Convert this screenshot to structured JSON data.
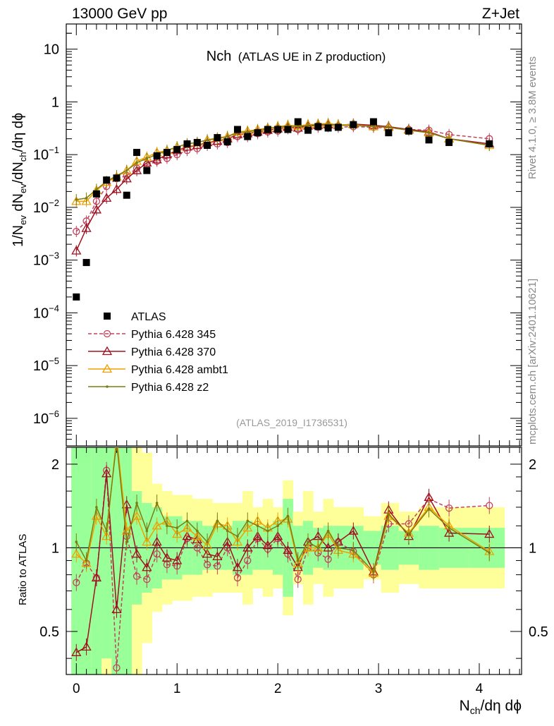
{
  "header": {
    "left": "13000 GeV pp",
    "right": "Z+Jet"
  },
  "side_labels": {
    "rivet": "Rivet 4.1.0, ≥ 3.8M events",
    "mcplots": "mcplots.cern.ch [arXiv:2401.10621]"
  },
  "chart_data": {
    "type": "line",
    "title_main": "Nch",
    "title_sub": "(ATLAS UE in Z production)",
    "analysis_id": "(ATLAS_2019_I1736531)",
    "xlabel": "N_ch/dη dϕ",
    "ylabel": "1/N_ev dN_ev/dN_ch/dη dϕ",
    "ratio_ylabel": "Ratio to ATLAS",
    "xlim": [
      -0.1,
      4.42
    ],
    "ylim": [
      3e-07,
      30
    ],
    "ratio_ylim": [
      0.35,
      2.3
    ],
    "yscale": "log",
    "x_ticks": [
      "0",
      "1",
      "2",
      "3",
      "4"
    ],
    "y_ticks": [
      {
        "v": 1e-06,
        "label": "10",
        "exp": "−6"
      },
      {
        "v": 1e-05,
        "label": "10",
        "exp": "−5"
      },
      {
        "v": 0.0001,
        "label": "10",
        "exp": "−4"
      },
      {
        "v": 0.001,
        "label": "10",
        "exp": "−3"
      },
      {
        "v": 0.01,
        "label": "10",
        "exp": "−2"
      },
      {
        "v": 0.1,
        "label": "10",
        "exp": "−1"
      },
      {
        "v": 1,
        "label": "1",
        "exp": ""
      },
      {
        "v": 10,
        "label": "10",
        "exp": ""
      }
    ],
    "ratio_ticks": [
      {
        "v": 0.5,
        "label": "0.5"
      },
      {
        "v": 1,
        "label": "1"
      },
      {
        "v": 2,
        "label": "2"
      }
    ],
    "data": {
      "name": "ATLAS",
      "x": [
        0.0,
        0.1,
        0.2,
        0.3,
        0.4,
        0.5,
        0.6,
        0.7,
        0.8,
        0.9,
        1.0,
        1.1,
        1.2,
        1.3,
        1.4,
        1.5,
        1.6,
        1.7,
        1.8,
        1.9,
        2.0,
        2.1,
        2.2,
        2.3,
        2.4,
        2.5,
        2.6,
        2.75,
        2.95,
        3.1,
        3.3,
        3.5,
        3.7,
        4.1
      ],
      "y": [
        0.0002,
        0.0009,
        0.018,
        0.033,
        0.036,
        0.017,
        0.11,
        0.05,
        0.095,
        0.11,
        0.125,
        0.16,
        0.17,
        0.15,
        0.21,
        0.175,
        0.3,
        0.22,
        0.26,
        0.3,
        0.3,
        0.3,
        0.42,
        0.29,
        0.34,
        0.32,
        0.33,
        0.37,
        0.42,
        0.26,
        0.28,
        0.19,
        0.17,
        0.16
      ]
    },
    "series": [
      {
        "name": "Pythia 6.428 345",
        "color": "#c2425c",
        "dashed": true,
        "marker": "circle",
        "x": [
          0.0,
          0.1,
          0.2,
          0.3,
          0.4,
          0.5,
          0.6,
          0.7,
          0.8,
          0.9,
          1.0,
          1.1,
          1.2,
          1.3,
          1.4,
          1.5,
          1.6,
          1.7,
          1.8,
          1.9,
          2.0,
          2.1,
          2.2,
          2.3,
          2.4,
          2.5,
          2.6,
          2.75,
          2.95,
          3.1,
          3.3,
          3.5,
          3.7,
          4.1
        ],
        "y": [
          0.0035,
          0.0055,
          0.013,
          0.025,
          0.035,
          0.04,
          0.055,
          0.065,
          0.075,
          0.085,
          0.1,
          0.12,
          0.13,
          0.15,
          0.16,
          0.17,
          0.22,
          0.22,
          0.25,
          0.27,
          0.28,
          0.31,
          0.3,
          0.32,
          0.33,
          0.34,
          0.33,
          0.34,
          0.33,
          0.32,
          0.3,
          0.29,
          0.24,
          0.2
        ],
        "ratio": [
          0.75,
          0.88,
          0.78,
          1.9,
          0.37,
          1.1,
          0.79,
          0.77,
          0.95,
          0.87,
          0.86,
          1.08,
          1.0,
          0.87,
          0.86,
          1.0,
          0.78,
          0.9,
          1.08,
          0.99,
          1.08,
          0.95,
          0.77,
          1.0,
          0.96,
          0.91,
          1.05,
          0.97,
          0.8,
          1.22,
          1.22,
          1.5,
          1.39,
          1.42
        ]
      },
      {
        "name": "Pythia 6.428 370",
        "color": "#a01020",
        "dashed": false,
        "marker": "triangle",
        "x": [
          0.0,
          0.1,
          0.2,
          0.3,
          0.4,
          0.5,
          0.6,
          0.7,
          0.8,
          0.9,
          1.0,
          1.1,
          1.2,
          1.3,
          1.4,
          1.5,
          1.6,
          1.7,
          1.8,
          1.9,
          2.0,
          2.1,
          2.2,
          2.3,
          2.4,
          2.5,
          2.6,
          2.75,
          2.95,
          3.1,
          3.3,
          3.5,
          3.7,
          4.1
        ],
        "y": [
          0.0015,
          0.004,
          0.009,
          0.015,
          0.022,
          0.035,
          0.05,
          0.07,
          0.08,
          0.1,
          0.12,
          0.14,
          0.15,
          0.17,
          0.18,
          0.2,
          0.24,
          0.25,
          0.27,
          0.29,
          0.31,
          0.33,
          0.32,
          0.35,
          0.36,
          0.37,
          0.36,
          0.38,
          0.36,
          0.34,
          0.3,
          0.27,
          0.2,
          0.16
        ],
        "ratio": [
          0.42,
          0.44,
          0.78,
          1.85,
          0.6,
          1.43,
          0.95,
          0.85,
          1.05,
          0.92,
          0.9,
          1.1,
          1.07,
          0.95,
          0.93,
          1.05,
          0.85,
          1.0,
          1.1,
          1.02,
          1.1,
          0.98,
          0.85,
          1.05,
          1.1,
          1.0,
          1.05,
          1.15,
          0.82,
          1.37,
          1.1,
          1.52,
          1.13,
          1.12
        ]
      },
      {
        "name": "Pythia 6.428 ambt1",
        "color": "#f0a000",
        "dashed": false,
        "marker": "triangle",
        "x": [
          0.0,
          0.1,
          0.2,
          0.3,
          0.4,
          0.5,
          0.6,
          0.7,
          0.8,
          0.9,
          1.0,
          1.1,
          1.2,
          1.3,
          1.4,
          1.5,
          1.6,
          1.7,
          1.8,
          1.9,
          2.0,
          2.1,
          2.2,
          2.3,
          2.4,
          2.5,
          2.6,
          2.75,
          2.95,
          3.1,
          3.3,
          3.5,
          3.7,
          4.1
        ],
        "y": [
          0.013,
          0.013,
          0.021,
          0.03,
          0.038,
          0.05,
          0.075,
          0.09,
          0.11,
          0.12,
          0.14,
          0.16,
          0.17,
          0.19,
          0.21,
          0.22,
          0.27,
          0.28,
          0.3,
          0.32,
          0.34,
          0.36,
          0.35,
          0.37,
          0.38,
          0.39,
          0.37,
          0.37,
          0.34,
          0.33,
          0.29,
          0.26,
          0.2,
          0.15
        ],
        "ratio": [
          0.95,
          0.88,
          1.3,
          1.1,
          2.5,
          1.15,
          1.3,
          1.05,
          1.2,
          1.25,
          1.12,
          1.18,
          1.1,
          1.02,
          1.22,
          1.2,
          1.05,
          1.18,
          1.25,
          1.18,
          1.25,
          1.27,
          0.88,
          1.0,
          1.0,
          1.12,
          0.98,
          0.95,
          0.81,
          1.3,
          1.13,
          1.4,
          1.2,
          0.97
        ]
      },
      {
        "name": "Pythia 6.428 z2",
        "color": "#7d7d10",
        "dashed": false,
        "marker": "dot",
        "x": [
          0.0,
          0.1,
          0.2,
          0.3,
          0.4,
          0.5,
          0.6,
          0.7,
          0.8,
          0.9,
          1.0,
          1.1,
          1.2,
          1.3,
          1.4,
          1.5,
          1.6,
          1.7,
          1.8,
          1.9,
          2.0,
          2.1,
          2.2,
          2.3,
          2.4,
          2.5,
          2.6,
          2.75,
          2.95,
          3.1,
          3.3,
          3.5,
          3.7,
          4.1
        ],
        "y": [
          0.014,
          0.015,
          0.022,
          0.031,
          0.04,
          0.05,
          0.07,
          0.085,
          0.1,
          0.12,
          0.14,
          0.16,
          0.17,
          0.19,
          0.2,
          0.22,
          0.26,
          0.27,
          0.29,
          0.31,
          0.33,
          0.35,
          0.34,
          0.36,
          0.37,
          0.38,
          0.36,
          0.36,
          0.34,
          0.33,
          0.29,
          0.26,
          0.2,
          0.15
        ],
        "ratio": [
          1.05,
          0.9,
          1.4,
          1.15,
          2.4,
          1.05,
          1.45,
          1.15,
          1.45,
          1.2,
          1.18,
          1.25,
          1.15,
          1.05,
          1.25,
          1.15,
          1.1,
          1.25,
          1.2,
          1.15,
          1.2,
          1.3,
          0.9,
          1.05,
          1.0,
          1.15,
          1.0,
          0.98,
          0.82,
          1.32,
          1.12,
          1.38,
          1.18,
          0.96
        ]
      }
    ]
  }
}
